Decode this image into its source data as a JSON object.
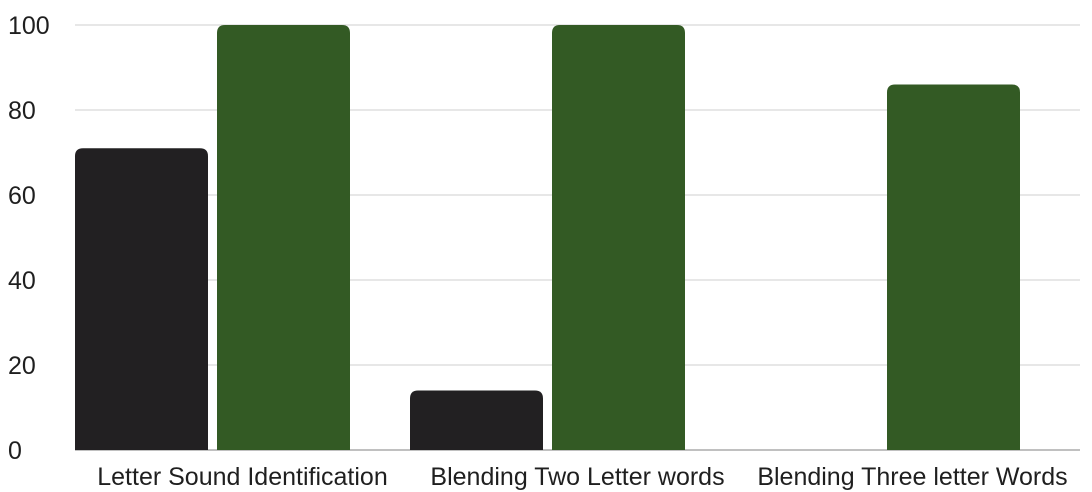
{
  "chart_data": {
    "type": "bar",
    "title": "",
    "xlabel": "",
    "ylabel": "",
    "categories": [
      "Letter Sound Identification",
      "Blending Two Letter words",
      "Blending Three letter Words"
    ],
    "series": [
      {
        "values": [
          71,
          14,
          0
        ],
        "color": "#222022"
      },
      {
        "values": [
          100,
          100,
          86
        ],
        "color": "#335a24"
      }
    ],
    "ylim": [
      0,
      100
    ],
    "yticks": [
      "0",
      "20",
      "40",
      "60",
      "80",
      "100"
    ],
    "grid": true,
    "legend": "none"
  }
}
